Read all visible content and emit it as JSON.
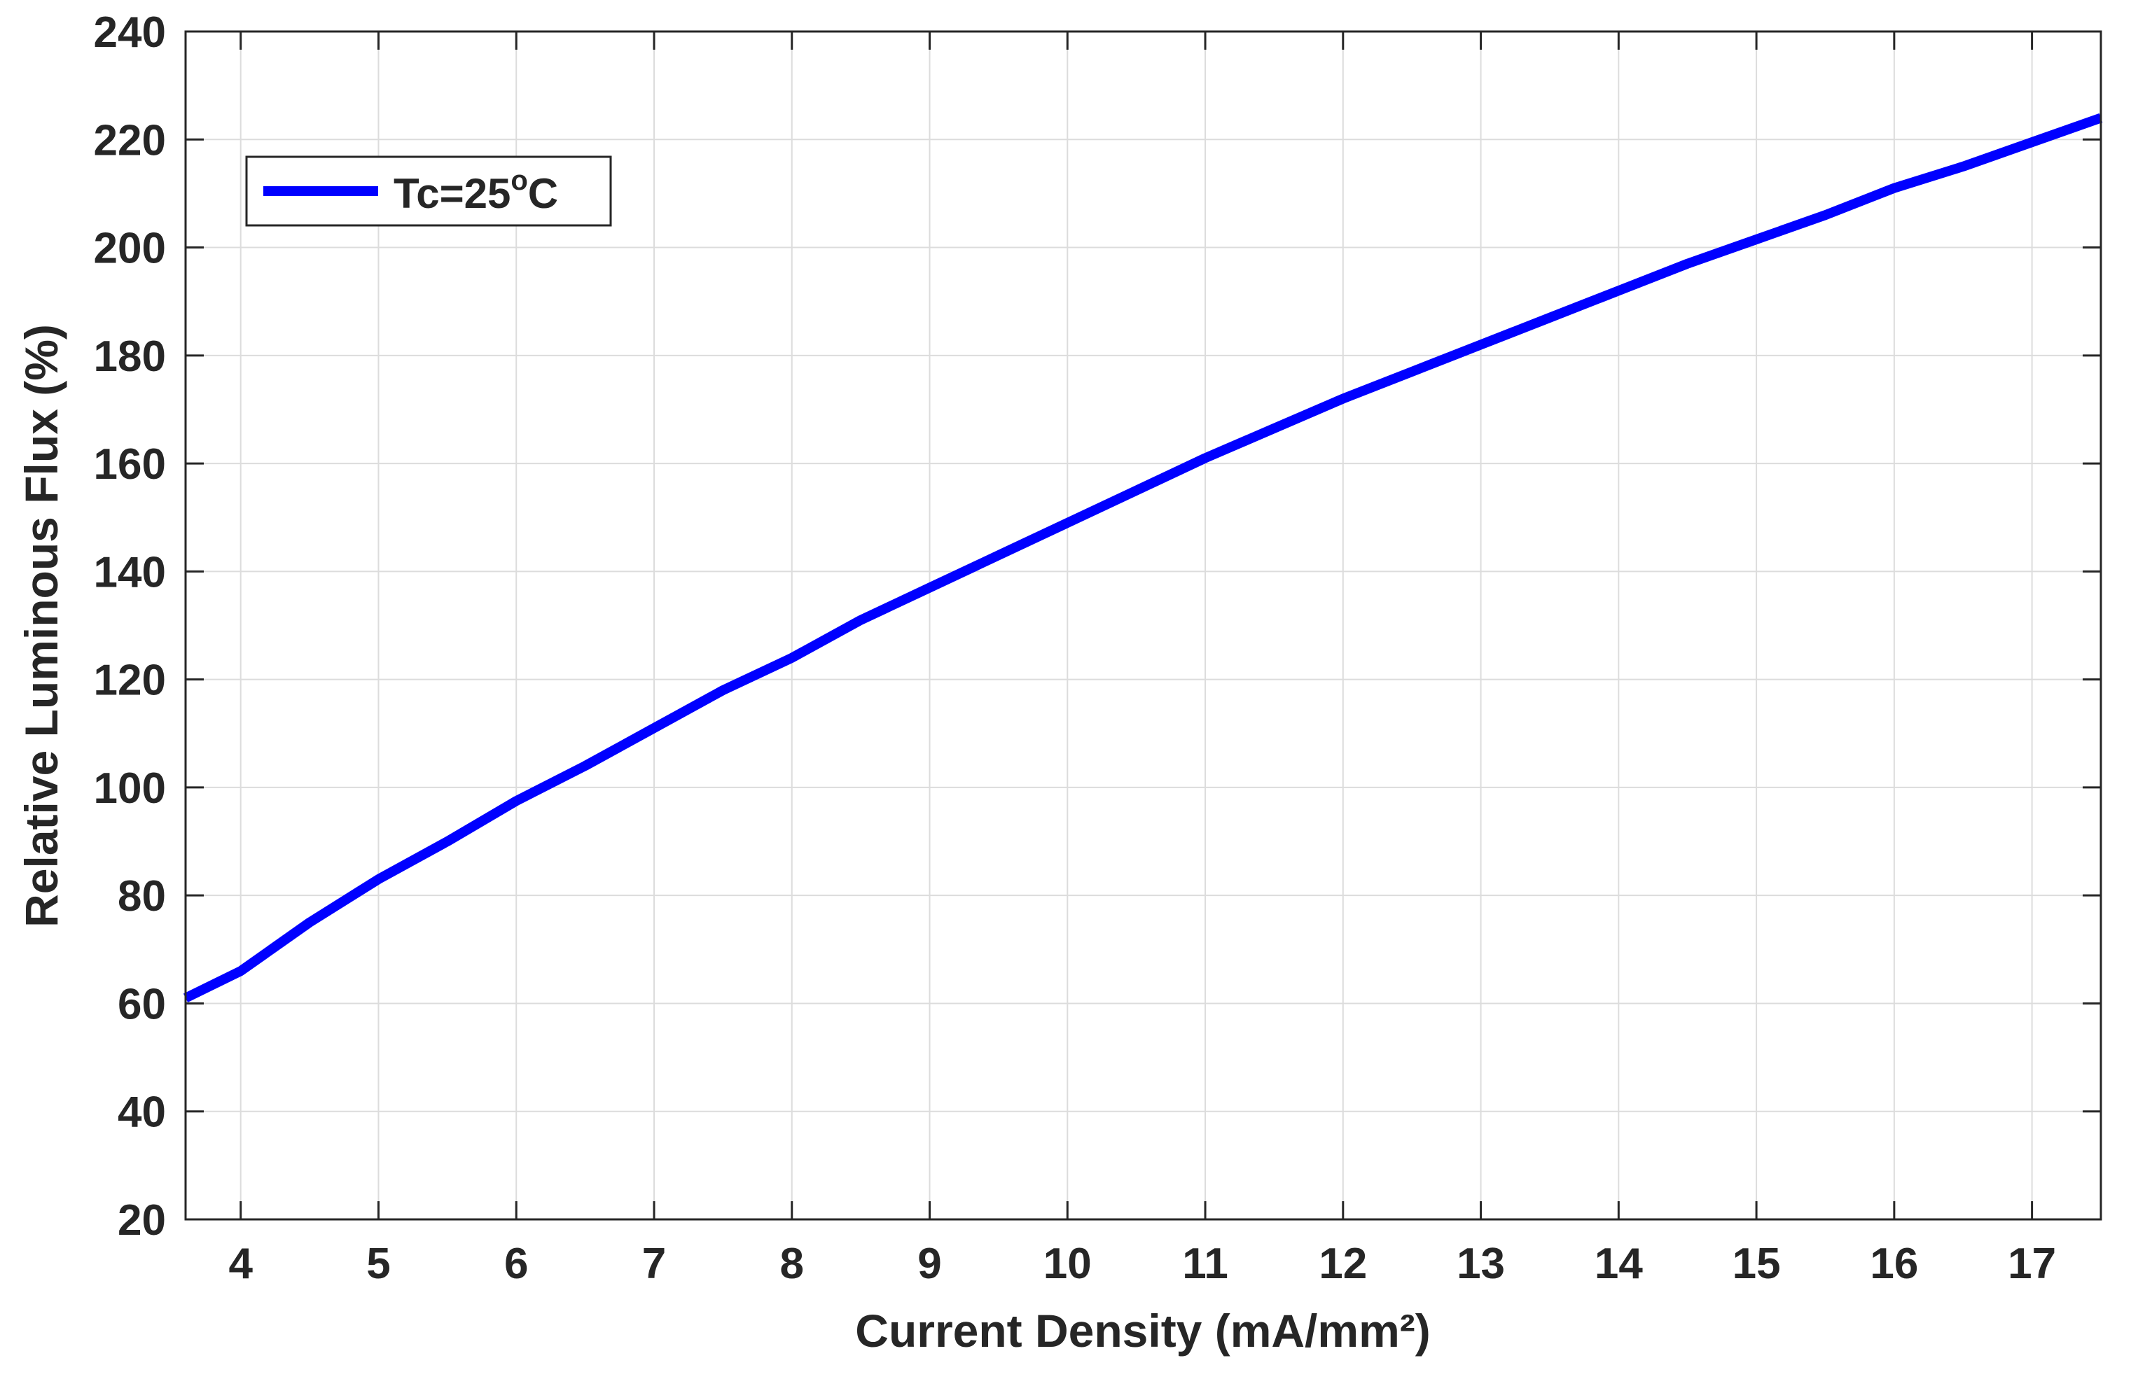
{
  "chart_data": {
    "type": "line",
    "title": "",
    "xlabel": "Current Density (mA/mm²)",
    "ylabel": "Relative Luminous Flux (%)",
    "xlim": [
      3.6,
      17.5
    ],
    "ylim": [
      20,
      240
    ],
    "xticks": [
      4,
      5,
      6,
      7,
      8,
      9,
      10,
      11,
      12,
      13,
      14,
      15,
      16,
      17
    ],
    "yticks": [
      20,
      40,
      60,
      80,
      100,
      120,
      140,
      160,
      180,
      200,
      220,
      240
    ],
    "grid": true,
    "legend": {
      "position": "top-left",
      "entries": [
        {
          "main": "Tc=25",
          "superscript": "o",
          "suffix": "C"
        }
      ]
    },
    "series": [
      {
        "name": "Tc=25°C",
        "color": "#0000ff",
        "x": [
          3.6,
          4.0,
          4.5,
          5.0,
          5.5,
          6.0,
          6.5,
          7.0,
          7.5,
          8.0,
          8.5,
          9.0,
          9.5,
          10.0,
          10.5,
          11.0,
          11.5,
          12.0,
          12.5,
          13.0,
          13.5,
          14.0,
          14.5,
          15.0,
          15.5,
          16.0,
          16.5,
          17.0,
          17.5
        ],
        "y": [
          61,
          66,
          75,
          83,
          90,
          97.5,
          104,
          111,
          118,
          124,
          131,
          137,
          143,
          149,
          155,
          161,
          166.5,
          172,
          177,
          182,
          187,
          192,
          197,
          201.5,
          206,
          211,
          215,
          219.5,
          224
        ]
      }
    ]
  }
}
